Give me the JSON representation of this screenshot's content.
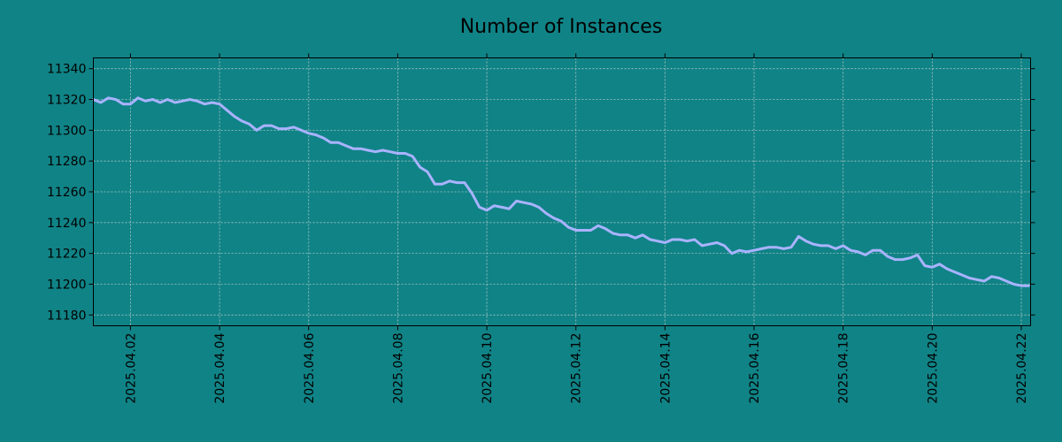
{
  "chart_data": {
    "type": "line",
    "title": "Number of Instances",
    "xlabel": "",
    "ylabel": "",
    "x_range": [
      "2025-04-01T04:00",
      "2025-04-22T05:00"
    ],
    "ylim": [
      11173,
      11347
    ],
    "x_ticks": [
      "2025.04.02",
      "2025.04.04",
      "2025.04.06",
      "2025.04.08",
      "2025.04.10",
      "2025.04.12",
      "2025.04.14",
      "2025.04.16",
      "2025.04.18",
      "2025.04.20",
      "2025.04.22"
    ],
    "y_ticks": [
      11180,
      11200,
      11220,
      11240,
      11260,
      11280,
      11300,
      11320,
      11340
    ],
    "grid": true,
    "colors": {
      "background": "#108386",
      "line": "#a9b3ff"
    },
    "series": [
      {
        "x": [
          "2025-04-01T04:00",
          "2025-04-01T08:00",
          "2025-04-01T12:00",
          "2025-04-01T16:00",
          "2025-04-01T20:00",
          "2025-04-02T00:00",
          "2025-04-02T04:00",
          "2025-04-02T08:00",
          "2025-04-02T12:00",
          "2025-04-02T16:00",
          "2025-04-02T20:00",
          "2025-04-03T00:00",
          "2025-04-03T04:00",
          "2025-04-03T08:00",
          "2025-04-03T12:00",
          "2025-04-03T16:00",
          "2025-04-03T20:00",
          "2025-04-04T00:00",
          "2025-04-04T04:00",
          "2025-04-04T08:00",
          "2025-04-04T12:00",
          "2025-04-04T16:00",
          "2025-04-04T20:00",
          "2025-04-05T00:00",
          "2025-04-05T04:00",
          "2025-04-05T08:00",
          "2025-04-05T12:00",
          "2025-04-05T16:00",
          "2025-04-05T20:00",
          "2025-04-06T00:00",
          "2025-04-06T04:00",
          "2025-04-06T08:00",
          "2025-04-06T12:00",
          "2025-04-06T16:00",
          "2025-04-06T20:00",
          "2025-04-07T00:00",
          "2025-04-07T04:00",
          "2025-04-07T08:00",
          "2025-04-07T12:00",
          "2025-04-07T16:00",
          "2025-04-07T20:00",
          "2025-04-08T00:00",
          "2025-04-08T04:00",
          "2025-04-08T08:00",
          "2025-04-08T12:00",
          "2025-04-08T16:00",
          "2025-04-08T20:00",
          "2025-04-09T00:00",
          "2025-04-09T04:00",
          "2025-04-09T08:00",
          "2025-04-09T12:00",
          "2025-04-09T16:00",
          "2025-04-09T20:00",
          "2025-04-10T00:00",
          "2025-04-10T04:00",
          "2025-04-10T08:00",
          "2025-04-10T12:00",
          "2025-04-10T16:00",
          "2025-04-10T20:00",
          "2025-04-11T00:00",
          "2025-04-11T04:00",
          "2025-04-11T08:00",
          "2025-04-11T12:00",
          "2025-04-11T16:00",
          "2025-04-11T20:00",
          "2025-04-12T00:00",
          "2025-04-12T04:00",
          "2025-04-12T08:00",
          "2025-04-12T12:00",
          "2025-04-12T16:00",
          "2025-04-12T20:00",
          "2025-04-13T00:00",
          "2025-04-13T04:00",
          "2025-04-13T08:00",
          "2025-04-13T12:00",
          "2025-04-13T16:00",
          "2025-04-13T20:00",
          "2025-04-14T00:00",
          "2025-04-14T04:00",
          "2025-04-14T08:00",
          "2025-04-14T12:00",
          "2025-04-14T16:00",
          "2025-04-14T20:00",
          "2025-04-15T00:00",
          "2025-04-15T04:00",
          "2025-04-15T08:00",
          "2025-04-15T12:00",
          "2025-04-15T16:00",
          "2025-04-15T20:00",
          "2025-04-16T00:00",
          "2025-04-16T04:00",
          "2025-04-16T08:00",
          "2025-04-16T12:00",
          "2025-04-16T16:00",
          "2025-04-16T20:00",
          "2025-04-17T00:00",
          "2025-04-17T04:00",
          "2025-04-17T08:00",
          "2025-04-17T12:00",
          "2025-04-17T16:00",
          "2025-04-17T20:00",
          "2025-04-18T00:00",
          "2025-04-18T04:00",
          "2025-04-18T08:00",
          "2025-04-18T12:00",
          "2025-04-18T16:00",
          "2025-04-18T20:00",
          "2025-04-19T00:00",
          "2025-04-19T04:00",
          "2025-04-19T08:00",
          "2025-04-19T12:00",
          "2025-04-19T16:00",
          "2025-04-19T20:00",
          "2025-04-20T00:00",
          "2025-04-20T04:00",
          "2025-04-20T08:00",
          "2025-04-20T12:00",
          "2025-04-20T16:00",
          "2025-04-20T20:00",
          "2025-04-21T00:00",
          "2025-04-21T04:00",
          "2025-04-21T08:00",
          "2025-04-21T12:00",
          "2025-04-21T16:00",
          "2025-04-21T20:00",
          "2025-04-22T00:00",
          "2025-04-22T04:00"
        ],
        "values": [
          11320,
          11318,
          11321,
          11320,
          11317,
          11317,
          11321,
          11319,
          11320,
          11318,
          11320,
          11318,
          11319,
          11320,
          11319,
          11317,
          11318,
          11317,
          11313,
          11309,
          11306,
          11304,
          11300,
          11303,
          11303,
          11301,
          11301,
          11302,
          11300,
          11298,
          11297,
          11295,
          11292,
          11292,
          11290,
          11288,
          11288,
          11287,
          11286,
          11287,
          11286,
          11285,
          11285,
          11283,
          11276,
          11273,
          11265,
          11265,
          11267,
          11266,
          11266,
          11259,
          11250,
          11248,
          11251,
          11250,
          11249,
          11254,
          11253,
          11252,
          11250,
          11246,
          11243,
          11241,
          11237,
          11235,
          11235,
          11235,
          11238,
          11236,
          11233,
          11232,
          11232,
          11230,
          11232,
          11229,
          11228,
          11227,
          11229,
          11229,
          11228,
          11229,
          11225,
          11226,
          11227,
          11225,
          11220,
          11222,
          11221,
          11222,
          11223,
          11224,
          11224,
          11223,
          11224,
          11231,
          11228,
          11226,
          11225,
          11225,
          11223,
          11225,
          11222,
          11221,
          11219,
          11222,
          11222,
          11218,
          11216,
          11216,
          11217,
          11219,
          11212,
          11211,
          11213,
          11210,
          11208,
          11206,
          11204,
          11203,
          11202,
          11205,
          11204,
          11202,
          11200,
          11199,
          11199
        ]
      }
    ]
  }
}
